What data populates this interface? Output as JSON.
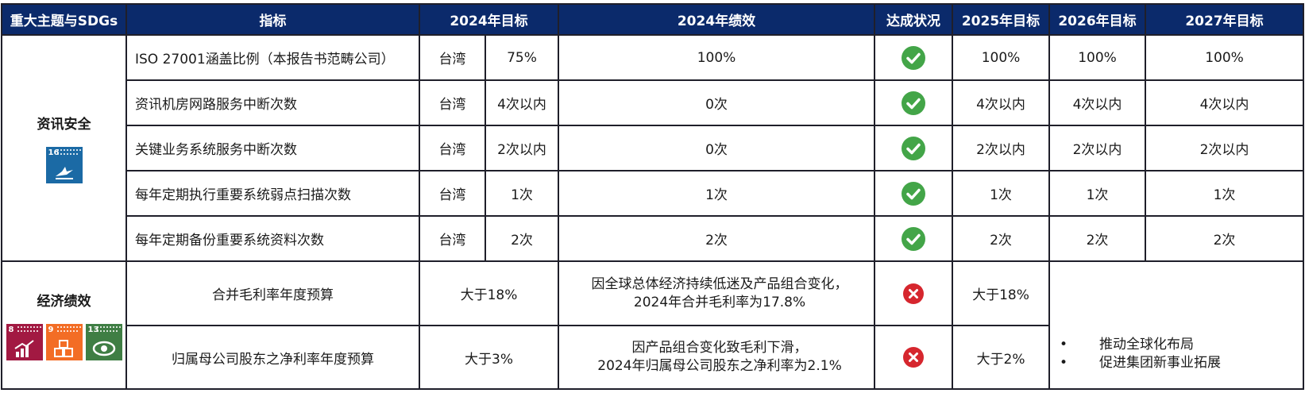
{
  "header": {
    "topic": "重大主题与SDGs",
    "indicator": "指标",
    "target_2024": "2024年目标",
    "perf_2024": "2024年绩效",
    "status": "达成状况",
    "target_2025": "2025年目标",
    "target_2026": "2026年目标",
    "target_2027": "2027年目标"
  },
  "section1": {
    "topic": "资讯安全",
    "sdg_icon": {
      "number": "16",
      "color": "#1b6aa5",
      "icon": "dove-icon"
    },
    "rows": [
      {
        "indicator": "ISO 27001涵盖比例（本报告书范畴公司）",
        "region": "台湾",
        "target_2024": "75%",
        "perf_2024": "100%",
        "status": "achieved",
        "target_2025": "100%",
        "target_2026": "100%",
        "target_2027": "100%"
      },
      {
        "indicator": "资讯机房网路服务中断次数",
        "region": "台湾",
        "target_2024": "4次以内",
        "perf_2024": "0次",
        "status": "achieved",
        "target_2025": "4次以内",
        "target_2026": "4次以内",
        "target_2027": "4次以内"
      },
      {
        "indicator": "关键业务系统服务中断次数",
        "region": "台湾",
        "target_2024": "2次以内",
        "perf_2024": "0次",
        "status": "achieved",
        "target_2025": "2次以内",
        "target_2026": "2次以内",
        "target_2027": "2次以内"
      },
      {
        "indicator": "每年定期执行重要系统弱点扫描次数",
        "region": "台湾",
        "target_2024": "1次",
        "perf_2024": "1次",
        "status": "achieved",
        "target_2025": "1次",
        "target_2026": "1次",
        "target_2027": "1次"
      },
      {
        "indicator": "每年定期备份重要系统资料次数",
        "region": "台湾",
        "target_2024": "2次",
        "perf_2024": "2次",
        "status": "achieved",
        "target_2025": "2次",
        "target_2026": "2次",
        "target_2027": "2次"
      }
    ]
  },
  "section2": {
    "topic": "经济绩效",
    "sdg_icons": [
      {
        "number": "8",
        "color": "#a21942",
        "icon": "growth-chart-icon"
      },
      {
        "number": "9",
        "color": "#f36d25",
        "icon": "cubes-icon"
      },
      {
        "number": "13",
        "color": "#3f7e44",
        "icon": "eye-icon"
      }
    ],
    "rows": [
      {
        "indicator": "合并毛利率年度预算",
        "target_2024": "大于18%",
        "perf_line1": "因全球总体经济持续低迷及产品组合变化，",
        "perf_line2": "2024年合并毛利率为17.8%",
        "status": "not-achieved",
        "target_2025": "大于18%"
      },
      {
        "indicator": "归属母公司股东之净利率年度预算",
        "target_2024": "大于3%",
        "perf_line1": "因产品组合变化致毛利下滑，",
        "perf_line2": "2024年归属母公司股东之净利率为2.1%",
        "status": "not-achieved",
        "target_2025": "大于2%"
      }
    ],
    "future_goals": [
      "推动全球化布局",
      "促进集团新事业拓展"
    ]
  },
  "colors": {
    "header_bg": "#0b2a6b",
    "check": "#43a548",
    "cross": "#d6262e"
  }
}
